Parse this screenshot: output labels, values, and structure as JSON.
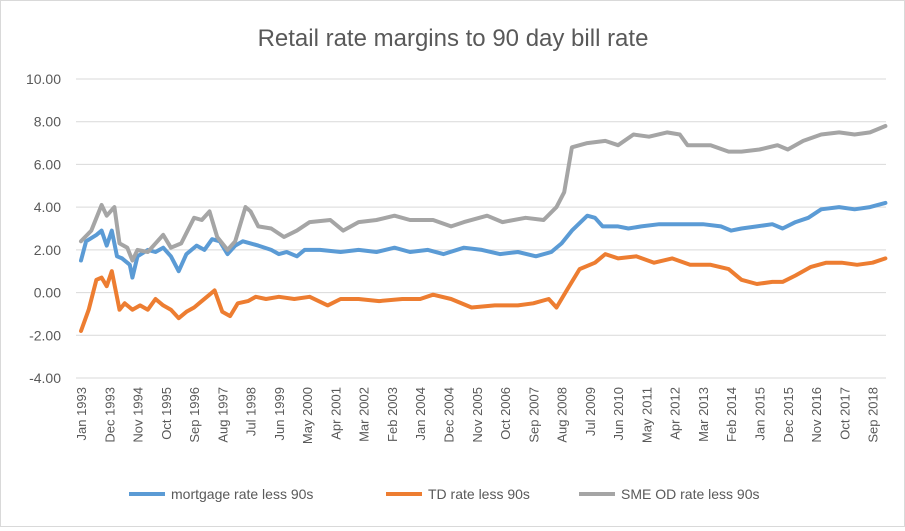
{
  "chart_data": {
    "type": "line",
    "title": "Retail rate margins to 90 day bill rate",
    "xlabel": "",
    "ylabel": "",
    "ylim": [
      -4,
      10
    ],
    "yticks": [
      "-4.00",
      "-2.00",
      "0.00",
      "2.00",
      "4.00",
      "6.00",
      "8.00",
      "10.00"
    ],
    "grid": true,
    "legend": "bottom",
    "xticks": [
      "Jan 1993",
      "Dec 1993",
      "Nov 1994",
      "Oct 1995",
      "Sep 1996",
      "Aug 1997",
      "Jul 1998",
      "Jun 1999",
      "May 2000",
      "Apr 2001",
      "Mar 2002",
      "Feb 2003",
      "Jan 2004",
      "Dec 2004",
      "Nov 2005",
      "Oct 2006",
      "Sep 2007",
      "Aug 2008",
      "Jul 2009",
      "Jun 2010",
      "May 2011",
      "Apr 2012",
      "Mar 2013",
      "Feb 2014",
      "Jan 2015",
      "Dec 2015",
      "Nov 2016",
      "Oct 2017",
      "Sep 2018"
    ],
    "series": [
      {
        "name": "mortgage rate less 90s",
        "color": "#5b9bd5",
        "points": [
          [
            "1993-01",
            1.5
          ],
          [
            "1993-03",
            2.4
          ],
          [
            "1993-07",
            2.7
          ],
          [
            "1993-09",
            2.9
          ],
          [
            "1993-11",
            2.2
          ],
          [
            "1994-01",
            2.9
          ],
          [
            "1994-03",
            1.7
          ],
          [
            "1994-05",
            1.6
          ],
          [
            "1994-08",
            1.3
          ],
          [
            "1994-09",
            0.7
          ],
          [
            "1994-11",
            1.7
          ],
          [
            "1995-03",
            2.0
          ],
          [
            "1995-06",
            1.9
          ],
          [
            "1995-09",
            2.1
          ],
          [
            "1995-12",
            1.7
          ],
          [
            "1996-03",
            1.0
          ],
          [
            "1996-06",
            1.8
          ],
          [
            "1996-10",
            2.2
          ],
          [
            "1997-01",
            2.0
          ],
          [
            "1997-04",
            2.5
          ],
          [
            "1997-07",
            2.4
          ],
          [
            "1997-10",
            1.8
          ],
          [
            "1998-01",
            2.2
          ],
          [
            "1998-04",
            2.4
          ],
          [
            "1998-07",
            2.3
          ],
          [
            "1998-10",
            2.2
          ],
          [
            "1999-03",
            2.0
          ],
          [
            "1999-06",
            1.8
          ],
          [
            "1999-09",
            1.9
          ],
          [
            "2000-01",
            1.7
          ],
          [
            "2000-04",
            2.0
          ],
          [
            "2000-10",
            2.0
          ],
          [
            "2001-06",
            1.9
          ],
          [
            "2002-01",
            2.0
          ],
          [
            "2002-08",
            1.9
          ],
          [
            "2003-03",
            2.1
          ],
          [
            "2003-09",
            1.9
          ],
          [
            "2004-04",
            2.0
          ],
          [
            "2004-10",
            1.8
          ],
          [
            "2005-06",
            2.1
          ],
          [
            "2006-01",
            2.0
          ],
          [
            "2006-08",
            1.8
          ],
          [
            "2007-03",
            1.9
          ],
          [
            "2007-10",
            1.7
          ],
          [
            "2008-04",
            1.9
          ],
          [
            "2008-08",
            2.3
          ],
          [
            "2008-12",
            2.9
          ],
          [
            "2009-06",
            3.6
          ],
          [
            "2009-09",
            3.5
          ],
          [
            "2009-12",
            3.1
          ],
          [
            "2010-06",
            3.1
          ],
          [
            "2010-10",
            3.0
          ],
          [
            "2011-03",
            3.1
          ],
          [
            "2011-10",
            3.2
          ],
          [
            "2012-03",
            3.2
          ],
          [
            "2012-08",
            3.2
          ],
          [
            "2013-03",
            3.2
          ],
          [
            "2013-10",
            3.1
          ],
          [
            "2014-02",
            2.9
          ],
          [
            "2014-06",
            3.0
          ],
          [
            "2014-12",
            3.1
          ],
          [
            "2015-06",
            3.2
          ],
          [
            "2015-10",
            3.0
          ],
          [
            "2016-03",
            3.3
          ],
          [
            "2016-08",
            3.5
          ],
          [
            "2017-01",
            3.9
          ],
          [
            "2017-08",
            4.0
          ],
          [
            "2018-02",
            3.9
          ],
          [
            "2018-08",
            4.0
          ],
          [
            "2019-02",
            4.2
          ]
        ]
      },
      {
        "name": "TD rate less 90s",
        "color": "#ed7d31",
        "points": [
          [
            "1993-01",
            -1.8
          ],
          [
            "1993-04",
            -0.8
          ],
          [
            "1993-07",
            0.6
          ],
          [
            "1993-09",
            0.7
          ],
          [
            "1993-11",
            0.3
          ],
          [
            "1994-01",
            1.0
          ],
          [
            "1994-04",
            -0.8
          ],
          [
            "1994-06",
            -0.5
          ],
          [
            "1994-09",
            -0.8
          ],
          [
            "1994-12",
            -0.6
          ],
          [
            "1995-03",
            -0.8
          ],
          [
            "1995-06",
            -0.3
          ],
          [
            "1995-09",
            -0.6
          ],
          [
            "1995-12",
            -0.8
          ],
          [
            "1996-03",
            -1.2
          ],
          [
            "1996-06",
            -0.9
          ],
          [
            "1996-09",
            -0.7
          ],
          [
            "1996-12",
            -0.4
          ],
          [
            "1997-03",
            -0.1
          ],
          [
            "1997-05",
            0.1
          ],
          [
            "1997-08",
            -0.9
          ],
          [
            "1997-11",
            -1.1
          ],
          [
            "1998-02",
            -0.5
          ],
          [
            "1998-06",
            -0.4
          ],
          [
            "1998-09",
            -0.2
          ],
          [
            "1999-01",
            -0.3
          ],
          [
            "1999-06",
            -0.2
          ],
          [
            "1999-12",
            -0.3
          ],
          [
            "2000-06",
            -0.2
          ],
          [
            "2001-01",
            -0.6
          ],
          [
            "2001-06",
            -0.3
          ],
          [
            "2002-01",
            -0.3
          ],
          [
            "2002-09",
            -0.4
          ],
          [
            "2003-06",
            -0.3
          ],
          [
            "2004-01",
            -0.3
          ],
          [
            "2004-06",
            -0.1
          ],
          [
            "2005-01",
            -0.3
          ],
          [
            "2005-09",
            -0.7
          ],
          [
            "2006-06",
            -0.6
          ],
          [
            "2007-03",
            -0.6
          ],
          [
            "2007-09",
            -0.5
          ],
          [
            "2008-03",
            -0.3
          ],
          [
            "2008-06",
            -0.7
          ],
          [
            "2008-10",
            0.1
          ],
          [
            "2009-03",
            1.1
          ],
          [
            "2009-09",
            1.4
          ],
          [
            "2010-01",
            1.8
          ],
          [
            "2010-06",
            1.6
          ],
          [
            "2011-01",
            1.7
          ],
          [
            "2011-08",
            1.4
          ],
          [
            "2012-03",
            1.6
          ],
          [
            "2012-10",
            1.3
          ],
          [
            "2013-06",
            1.3
          ],
          [
            "2014-01",
            1.1
          ],
          [
            "2014-06",
            0.6
          ],
          [
            "2014-12",
            0.4
          ],
          [
            "2015-06",
            0.5
          ],
          [
            "2015-10",
            0.5
          ],
          [
            "2016-03",
            0.8
          ],
          [
            "2016-09",
            1.2
          ],
          [
            "2017-03",
            1.4
          ],
          [
            "2017-09",
            1.4
          ],
          [
            "2018-03",
            1.3
          ],
          [
            "2018-09",
            1.4
          ],
          [
            "2019-02",
            1.6
          ]
        ]
      },
      {
        "name": "SME OD rate less 90s",
        "color": "#a5a5a5",
        "points": [
          [
            "1993-01",
            2.4
          ],
          [
            "1993-05",
            2.9
          ],
          [
            "1993-09",
            4.1
          ],
          [
            "1993-11",
            3.6
          ],
          [
            "1994-02",
            4.0
          ],
          [
            "1994-04",
            2.3
          ],
          [
            "1994-07",
            2.1
          ],
          [
            "1994-09",
            1.5
          ],
          [
            "1994-11",
            2.0
          ],
          [
            "1995-03",
            1.9
          ],
          [
            "1995-06",
            2.3
          ],
          [
            "1995-09",
            2.7
          ],
          [
            "1995-12",
            2.1
          ],
          [
            "1996-04",
            2.3
          ],
          [
            "1996-09",
            3.5
          ],
          [
            "1996-12",
            3.4
          ],
          [
            "1997-03",
            3.8
          ],
          [
            "1997-06",
            2.6
          ],
          [
            "1997-10",
            2.0
          ],
          [
            "1998-01",
            2.4
          ],
          [
            "1998-05",
            4.0
          ],
          [
            "1998-07",
            3.8
          ],
          [
            "1998-10",
            3.1
          ],
          [
            "1999-03",
            3.0
          ],
          [
            "1999-08",
            2.6
          ],
          [
            "2000-01",
            2.9
          ],
          [
            "2000-06",
            3.3
          ],
          [
            "2001-02",
            3.4
          ],
          [
            "2001-07",
            2.9
          ],
          [
            "2002-01",
            3.3
          ],
          [
            "2002-08",
            3.4
          ],
          [
            "2003-03",
            3.6
          ],
          [
            "2003-09",
            3.4
          ],
          [
            "2004-06",
            3.4
          ],
          [
            "2005-01",
            3.1
          ],
          [
            "2005-06",
            3.3
          ],
          [
            "2006-03",
            3.6
          ],
          [
            "2006-09",
            3.3
          ],
          [
            "2007-06",
            3.5
          ],
          [
            "2008-01",
            3.4
          ],
          [
            "2008-06",
            4.0
          ],
          [
            "2008-09",
            4.7
          ],
          [
            "2008-12",
            6.8
          ],
          [
            "2009-06",
            7.0
          ],
          [
            "2010-01",
            7.1
          ],
          [
            "2010-06",
            6.9
          ],
          [
            "2010-12",
            7.4
          ],
          [
            "2011-06",
            7.3
          ],
          [
            "2012-01",
            7.5
          ],
          [
            "2012-06",
            7.4
          ],
          [
            "2012-09",
            6.9
          ],
          [
            "2013-06",
            6.9
          ],
          [
            "2014-01",
            6.6
          ],
          [
            "2014-06",
            6.6
          ],
          [
            "2015-01",
            6.7
          ],
          [
            "2015-08",
            6.9
          ],
          [
            "2015-12",
            6.7
          ],
          [
            "2016-06",
            7.1
          ],
          [
            "2017-01",
            7.4
          ],
          [
            "2017-08",
            7.5
          ],
          [
            "2018-02",
            7.4
          ],
          [
            "2018-08",
            7.5
          ],
          [
            "2019-02",
            7.8
          ]
        ]
      }
    ]
  }
}
